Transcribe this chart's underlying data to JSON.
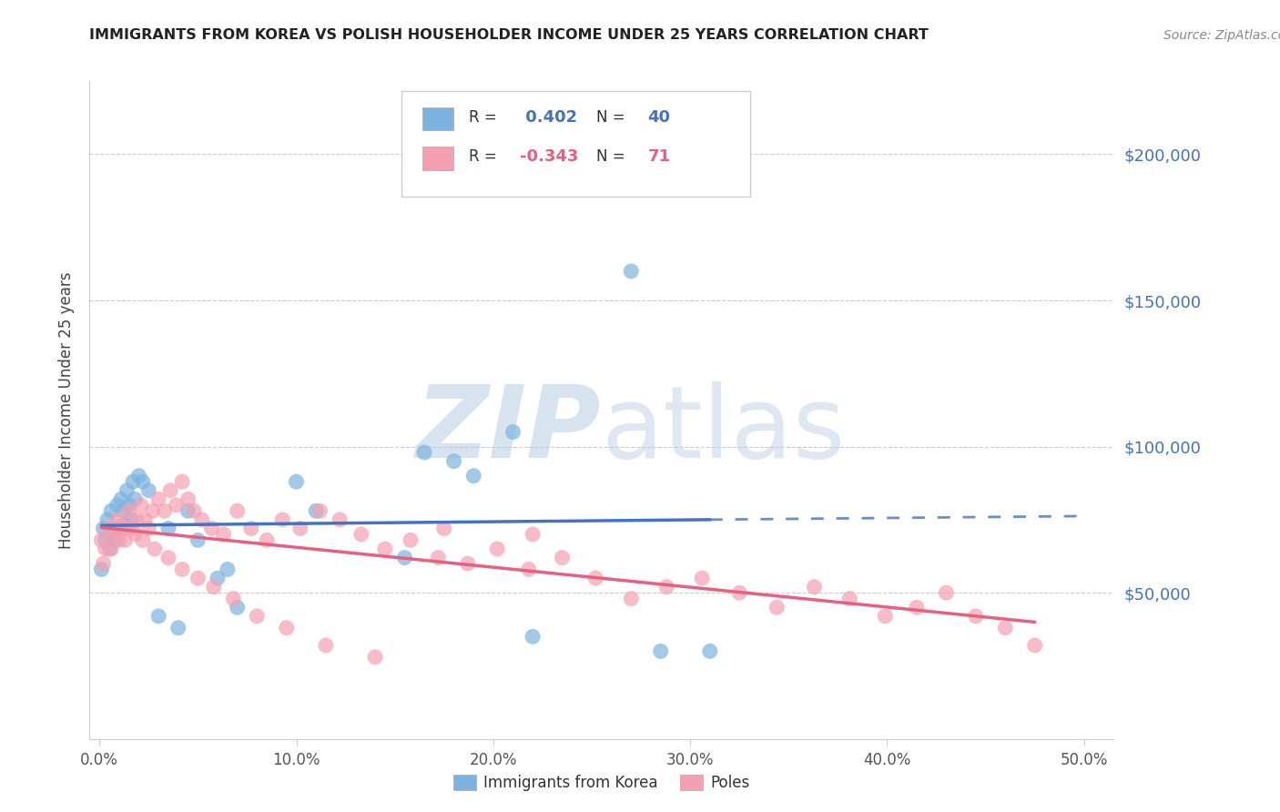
{
  "title": "IMMIGRANTS FROM KOREA VS POLISH HOUSEHOLDER INCOME UNDER 25 YEARS CORRELATION CHART",
  "source": "Source: ZipAtlas.com",
  "ylabel": "Householder Income Under 25 years",
  "xlabel_ticks": [
    "0.0%",
    "10.0%",
    "20.0%",
    "30.0%",
    "40.0%",
    "50.0%"
  ],
  "xlabel_vals": [
    0.0,
    0.1,
    0.2,
    0.3,
    0.4,
    0.5
  ],
  "xlim": [
    -0.005,
    0.515
  ],
  "ylim": [
    0,
    225000
  ],
  "ytick_vals": [
    50000,
    100000,
    150000,
    200000
  ],
  "ytick_labels": [
    "$50,000",
    "$100,000",
    "$150,000",
    "$200,000"
  ],
  "korea_R": 0.402,
  "korea_N": 40,
  "polish_R": -0.343,
  "polish_N": 71,
  "korea_color": "#7DB3E0",
  "polish_color": "#F4A0B0",
  "korea_line_color": "#4472C4",
  "polish_line_color": "#E86080",
  "background_color": "#ffffff",
  "grid_color": "#cccccc",
  "korea_x": [
    0.001,
    0.002,
    0.003,
    0.004,
    0.005,
    0.006,
    0.007,
    0.008,
    0.009,
    0.01,
    0.011,
    0.012,
    0.013,
    0.014,
    0.015,
    0.016,
    0.017,
    0.018,
    0.02,
    0.022,
    0.025,
    0.03,
    0.035,
    0.04,
    0.045,
    0.05,
    0.06,
    0.065,
    0.07,
    0.1,
    0.11,
    0.155,
    0.165,
    0.18,
    0.19,
    0.21,
    0.22,
    0.27,
    0.285,
    0.31
  ],
  "korea_y": [
    58000,
    72000,
    68000,
    75000,
    65000,
    78000,
    70000,
    68000,
    80000,
    72000,
    82000,
    78000,
    73000,
    85000,
    80000,
    75000,
    88000,
    82000,
    90000,
    88000,
    85000,
    42000,
    72000,
    38000,
    78000,
    68000,
    55000,
    58000,
    45000,
    88000,
    78000,
    62000,
    98000,
    95000,
    90000,
    105000,
    35000,
    160000,
    30000,
    30000
  ],
  "polish_x": [
    0.001,
    0.003,
    0.005,
    0.007,
    0.009,
    0.011,
    0.013,
    0.015,
    0.017,
    0.019,
    0.021,
    0.023,
    0.025,
    0.027,
    0.03,
    0.033,
    0.036,
    0.039,
    0.042,
    0.045,
    0.048,
    0.052,
    0.057,
    0.063,
    0.07,
    0.077,
    0.085,
    0.093,
    0.102,
    0.112,
    0.122,
    0.133,
    0.145,
    0.158,
    0.172,
    0.187,
    0.202,
    0.218,
    0.235,
    0.252,
    0.27,
    0.288,
    0.306,
    0.325,
    0.344,
    0.363,
    0.381,
    0.399,
    0.415,
    0.43,
    0.445,
    0.46,
    0.475,
    0.002,
    0.006,
    0.01,
    0.014,
    0.018,
    0.022,
    0.028,
    0.035,
    0.042,
    0.05,
    0.058,
    0.068,
    0.08,
    0.095,
    0.115,
    0.14,
    0.175,
    0.22
  ],
  "polish_y": [
    68000,
    65000,
    72000,
    70000,
    75000,
    73000,
    68000,
    78000,
    72000,
    75000,
    80000,
    75000,
    72000,
    78000,
    82000,
    78000,
    85000,
    80000,
    88000,
    82000,
    78000,
    75000,
    72000,
    70000,
    78000,
    72000,
    68000,
    75000,
    72000,
    78000,
    75000,
    70000,
    65000,
    68000,
    62000,
    60000,
    65000,
    58000,
    62000,
    55000,
    48000,
    52000,
    55000,
    50000,
    45000,
    52000,
    48000,
    42000,
    45000,
    50000,
    42000,
    38000,
    32000,
    60000,
    65000,
    68000,
    72000,
    70000,
    68000,
    65000,
    62000,
    58000,
    55000,
    52000,
    48000,
    42000,
    38000,
    32000,
    28000,
    72000,
    70000
  ]
}
